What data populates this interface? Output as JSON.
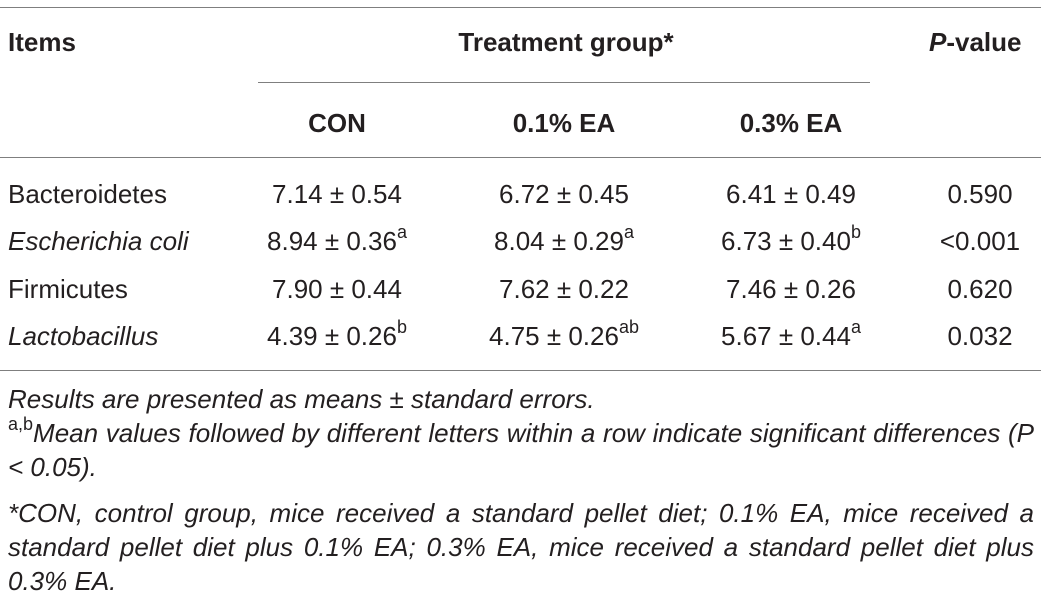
{
  "table": {
    "headers": {
      "items": "Items",
      "treatment_group": "Treatment group*",
      "p_value_p": "P",
      "p_value_rest": "-value",
      "groups": [
        "CON",
        "0.1% EA",
        "0.3% EA"
      ]
    },
    "rows": [
      {
        "item": "Bacteroidetes",
        "italic": false,
        "values": [
          {
            "v": "7.14 ± 0.54",
            "sup": ""
          },
          {
            "v": "6.72 ± 0.45",
            "sup": ""
          },
          {
            "v": "6.41 ± 0.49",
            "sup": ""
          }
        ],
        "p": "0.590"
      },
      {
        "item": "Escherichia coli",
        "italic": true,
        "values": [
          {
            "v": "8.94 ± 0.36",
            "sup": "a"
          },
          {
            "v": "8.04 ± 0.29",
            "sup": "a"
          },
          {
            "v": "6.73 ± 0.40",
            "sup": "b"
          }
        ],
        "p": "<0.001"
      },
      {
        "item": "Firmicutes",
        "italic": false,
        "values": [
          {
            "v": "7.90 ± 0.44",
            "sup": ""
          },
          {
            "v": "7.62 ± 0.22",
            "sup": ""
          },
          {
            "v": "7.46 ± 0.26",
            "sup": ""
          }
        ],
        "p": "0.620"
      },
      {
        "item": "Lactobacillus",
        "italic": true,
        "values": [
          {
            "v": "4.39 ± 0.26",
            "sup": "b"
          },
          {
            "v": "4.75 ± 0.26",
            "sup": "ab"
          },
          {
            "v": "5.67 ± 0.44",
            "sup": "a"
          }
        ],
        "p": "0.032"
      }
    ]
  },
  "notes": {
    "note1": "Results are presented as means ± standard errors.",
    "note2_sup": "a,b",
    "note2": "Mean values followed by different letters within a row indicate significant differences (P < 0.05).",
    "note3": "*CON, control group, mice received a standard pellet diet; 0.1% EA, mice received a standard pellet diet plus 0.1% EA; 0.3% EA, mice received a standard pellet diet plus 0.3% EA."
  }
}
